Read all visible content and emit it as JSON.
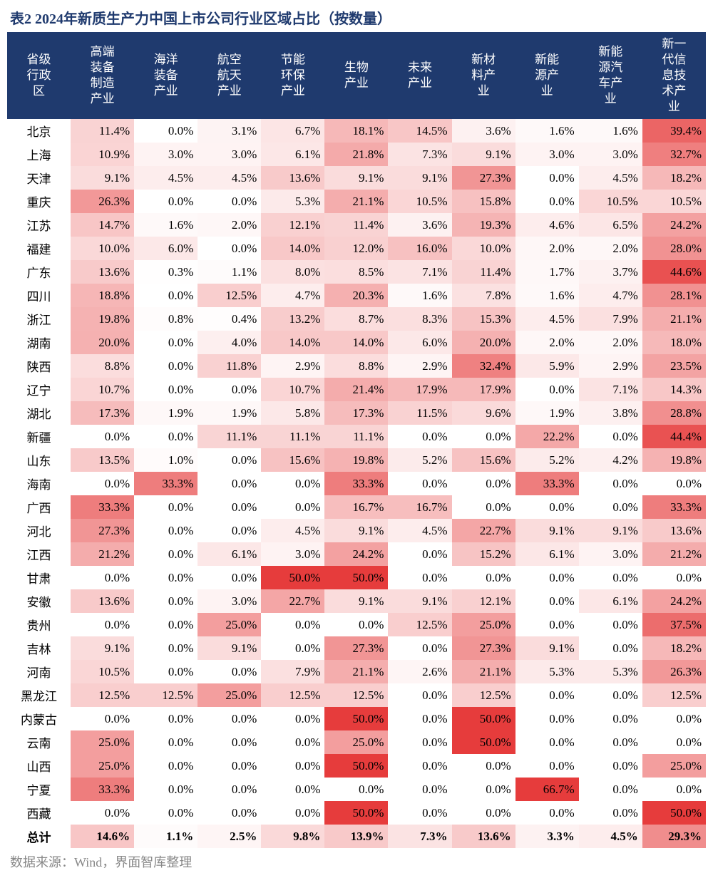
{
  "title": "表2 2024年新质生产力中国上市公司行业区域占比（按数量）",
  "footer": "数据来源：Wind，界面智库整理",
  "heatmap": {
    "min_color": "#ffffff",
    "max_color": "#e63c3c",
    "scale_max": 50.0
  },
  "columns": [
    "省级行政区",
    "高端装备制造产业",
    "海洋装备产业",
    "航空航天产业",
    "节能环保产业",
    "生物产业",
    "未来产业",
    "新材料产业",
    "新能源产业",
    "新能源汽车产业",
    "新一代信息技术产业"
  ],
  "rows": [
    {
      "name": "北京",
      "vals": [
        11.4,
        0.0,
        3.1,
        6.7,
        18.1,
        14.5,
        3.6,
        1.6,
        1.6,
        39.4
      ]
    },
    {
      "name": "上海",
      "vals": [
        10.9,
        3.0,
        3.0,
        6.1,
        21.8,
        7.3,
        9.1,
        3.0,
        3.0,
        32.7
      ]
    },
    {
      "name": "天津",
      "vals": [
        9.1,
        4.5,
        4.5,
        13.6,
        9.1,
        9.1,
        27.3,
        0.0,
        4.5,
        18.2
      ]
    },
    {
      "name": "重庆",
      "vals": [
        26.3,
        0.0,
        0.0,
        5.3,
        21.1,
        10.5,
        15.8,
        0.0,
        10.5,
        10.5
      ]
    },
    {
      "name": "江苏",
      "vals": [
        14.7,
        1.6,
        2.0,
        12.1,
        11.4,
        3.6,
        19.3,
        4.6,
        6.5,
        24.2
      ]
    },
    {
      "name": "福建",
      "vals": [
        10.0,
        6.0,
        0.0,
        14.0,
        12.0,
        16.0,
        10.0,
        2.0,
        2.0,
        28.0
      ]
    },
    {
      "name": "广东",
      "vals": [
        13.6,
        0.3,
        1.1,
        8.0,
        8.5,
        7.1,
        11.4,
        1.7,
        3.7,
        44.6
      ]
    },
    {
      "name": "四川",
      "vals": [
        18.8,
        0.0,
        12.5,
        4.7,
        20.3,
        1.6,
        7.8,
        1.6,
        4.7,
        28.1
      ]
    },
    {
      "name": "浙江",
      "vals": [
        19.8,
        0.8,
        0.4,
        13.2,
        8.7,
        8.3,
        15.3,
        4.5,
        7.9,
        21.1
      ]
    },
    {
      "name": "湖南",
      "vals": [
        20.0,
        0.0,
        4.0,
        14.0,
        14.0,
        6.0,
        20.0,
        2.0,
        2.0,
        18.0
      ]
    },
    {
      "name": "陕西",
      "vals": [
        8.8,
        0.0,
        11.8,
        2.9,
        8.8,
        2.9,
        32.4,
        5.9,
        2.9,
        23.5
      ]
    },
    {
      "name": "辽宁",
      "vals": [
        10.7,
        0.0,
        0.0,
        10.7,
        21.4,
        17.9,
        17.9,
        0.0,
        7.1,
        14.3
      ]
    },
    {
      "name": "湖北",
      "vals": [
        17.3,
        1.9,
        1.9,
        5.8,
        17.3,
        11.5,
        9.6,
        1.9,
        3.8,
        28.8
      ]
    },
    {
      "name": "新疆",
      "vals": [
        0.0,
        0.0,
        11.1,
        11.1,
        11.1,
        0.0,
        0.0,
        22.2,
        0.0,
        44.4
      ]
    },
    {
      "name": "山东",
      "vals": [
        13.5,
        1.0,
        0.0,
        15.6,
        19.8,
        5.2,
        15.6,
        5.2,
        4.2,
        19.8
      ]
    },
    {
      "name": "海南",
      "vals": [
        0.0,
        33.3,
        0.0,
        0.0,
        33.3,
        0.0,
        0.0,
        33.3,
        0.0,
        0.0
      ]
    },
    {
      "name": "广西",
      "vals": [
        33.3,
        0.0,
        0.0,
        0.0,
        16.7,
        16.7,
        0.0,
        0.0,
        0.0,
        33.3
      ]
    },
    {
      "name": "河北",
      "vals": [
        27.3,
        0.0,
        0.0,
        4.5,
        9.1,
        4.5,
        22.7,
        9.1,
        9.1,
        13.6
      ]
    },
    {
      "name": "江西",
      "vals": [
        21.2,
        0.0,
        6.1,
        3.0,
        24.2,
        0.0,
        15.2,
        6.1,
        3.0,
        21.2
      ]
    },
    {
      "name": "甘肃",
      "vals": [
        0.0,
        0.0,
        0.0,
        50.0,
        50.0,
        0.0,
        0.0,
        0.0,
        0.0,
        0.0
      ]
    },
    {
      "name": "安徽",
      "vals": [
        13.6,
        0.0,
        3.0,
        22.7,
        9.1,
        9.1,
        12.1,
        0.0,
        6.1,
        24.2
      ]
    },
    {
      "name": "贵州",
      "vals": [
        0.0,
        0.0,
        25.0,
        0.0,
        0.0,
        12.5,
        25.0,
        0.0,
        0.0,
        37.5
      ]
    },
    {
      "name": "吉林",
      "vals": [
        9.1,
        0.0,
        9.1,
        0.0,
        27.3,
        0.0,
        27.3,
        9.1,
        0.0,
        18.2
      ]
    },
    {
      "name": "河南",
      "vals": [
        10.5,
        0.0,
        0.0,
        7.9,
        21.1,
        2.6,
        21.1,
        5.3,
        5.3,
        26.3
      ]
    },
    {
      "name": "黑龙江",
      "vals": [
        12.5,
        12.5,
        25.0,
        12.5,
        12.5,
        0.0,
        12.5,
        0.0,
        0.0,
        12.5
      ]
    },
    {
      "name": "内蒙古",
      "vals": [
        0.0,
        0.0,
        0.0,
        0.0,
        50.0,
        0.0,
        50.0,
        0.0,
        0.0,
        0.0
      ]
    },
    {
      "name": "云南",
      "vals": [
        25.0,
        0.0,
        0.0,
        0.0,
        25.0,
        0.0,
        50.0,
        0.0,
        0.0,
        0.0
      ]
    },
    {
      "name": "山西",
      "vals": [
        25.0,
        0.0,
        0.0,
        0.0,
        50.0,
        0.0,
        0.0,
        0.0,
        0.0,
        25.0
      ]
    },
    {
      "name": "宁夏",
      "vals": [
        33.3,
        0.0,
        0.0,
        0.0,
        0.0,
        0.0,
        0.0,
        66.7,
        0.0,
        0.0
      ]
    },
    {
      "name": "西藏",
      "vals": [
        0.0,
        0.0,
        0.0,
        0.0,
        50.0,
        0.0,
        0.0,
        0.0,
        0.0,
        50.0
      ]
    },
    {
      "name": "总计",
      "vals": [
        14.6,
        1.1,
        2.5,
        9.8,
        13.9,
        7.3,
        13.6,
        3.3,
        4.5,
        29.3
      ],
      "total": true
    }
  ]
}
